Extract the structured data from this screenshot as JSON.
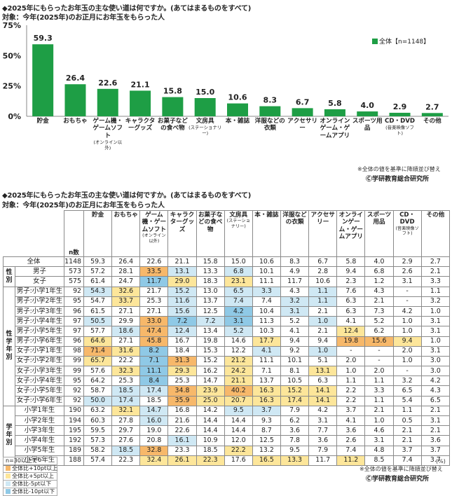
{
  "chart_data": [
    {
      "type": "bar",
      "title": "◆2025年にもらったお年玉の主な使い道は何ですか。(あてはまるものをすべて)",
      "subtitle": "対象：今年(2025年)のお正月にお年玉をもらった人",
      "categories": [
        {
          "label": "貯金",
          "sub": ""
        },
        {
          "label": "おもちゃ",
          "sub": ""
        },
        {
          "label": "ゲーム機・ゲームソフト",
          "sub": "(オンライン以外)"
        },
        {
          "label": "キャラクターグッズ",
          "sub": ""
        },
        {
          "label": "お菓子などの食べ物",
          "sub": ""
        },
        {
          "label": "文房具",
          "sub": "(ステーショナリー)"
        },
        {
          "label": "本・雑誌",
          "sub": ""
        },
        {
          "label": "洋服などの衣類",
          "sub": ""
        },
        {
          "label": "アクセサリー",
          "sub": ""
        },
        {
          "label": "オンラインゲーム・ゲームアプリ",
          "sub": ""
        },
        {
          "label": "スポーツ用品",
          "sub": ""
        },
        {
          "label": "CD・DVD",
          "sub": "(音楽映像ソフト)"
        },
        {
          "label": "その他",
          "sub": ""
        }
      ],
      "series": [
        {
          "name": "全体【n=1148】",
          "values": [
            59.3,
            26.4,
            22.6,
            21.1,
            15.8,
            15.0,
            10.6,
            8.3,
            6.7,
            5.8,
            4.0,
            2.9,
            2.7
          ]
        }
      ],
      "ylim": [
        0,
        75
      ],
      "yticks": [
        "0%",
        "25%",
        "50%",
        "75%"
      ],
      "legend_position": "top-right",
      "bar_color": "#1e9e45",
      "note": "※全体の値を基準に降順並び替え",
      "copyright": "ⒸⒸ学研教育総合研究所"
    },
    {
      "type": "table",
      "title": "◆2025年にもらったお年玉の主な使い道は何ですか。(あてはまるものをすべて)",
      "subtitle": "対象：今年(2025年)のお正月にお年玉をもらった人",
      "n_label": "n数",
      "columns": [
        {
          "label": "貯金",
          "sub": ""
        },
        {
          "label": "おもちゃ",
          "sub": ""
        },
        {
          "label": "ゲーム機・ゲームソフト",
          "sub": "(オンライン以外)"
        },
        {
          "label": "キャラクターグッズ",
          "sub": ""
        },
        {
          "label": "お菓子などの食べ物",
          "sub": ""
        },
        {
          "label": "文房具",
          "sub": "(ステーショナリー)"
        },
        {
          "label": "本・雑誌",
          "sub": ""
        },
        {
          "label": "洋服などの衣類",
          "sub": ""
        },
        {
          "label": "アクセサリー",
          "sub": ""
        },
        {
          "label": "オンラインゲーム・ゲームアプリ",
          "sub": ""
        },
        {
          "label": "スポーツ用品",
          "sub": ""
        },
        {
          "label": "CD・DVD",
          "sub": "(音楽映像ソフト)"
        },
        {
          "label": "その他",
          "sub": ""
        }
      ],
      "groups": [
        {
          "name": "",
          "rows": [
            {
              "label": "全体",
              "n": "1148",
              "values": [
                "59.3",
                "26.4",
                "22.6",
                "21.1",
                "15.8",
                "15.0",
                "10.6",
                "8.3",
                "6.7",
                "5.8",
                "4.0",
                "2.9",
                "2.7"
              ]
            }
          ]
        },
        {
          "name": "性別",
          "rows": [
            {
              "label": "男子",
              "n": "573",
              "values": [
                "57.2",
                "28.1",
                "33.5",
                "13.1",
                "13.3",
                "6.8",
                "10.1",
                "4.9",
                "2.8",
                "9.4",
                "6.8",
                "2.6",
                "2.1"
              ]
            },
            {
              "label": "女子",
              "n": "575",
              "values": [
                "61.4",
                "24.7",
                "11.7",
                "29.0",
                "18.3",
                "23.1",
                "11.1",
                "11.7",
                "10.6",
                "2.3",
                "1.2",
                "3.1",
                "3.3"
              ]
            }
          ]
        },
        {
          "name": "性学年別",
          "rows": [
            {
              "label": "男子:小学1年生",
              "n": "92",
              "values": [
                "54.3",
                "32.6",
                "21.7",
                "15.2",
                "13.0",
                "6.5",
                "3.3",
                "4.3",
                "1.1",
                "7.6",
                "4.3",
                "-",
                "1.1"
              ]
            },
            {
              "label": "男子:小学2年生",
              "n": "95",
              "values": [
                "54.7",
                "33.7",
                "25.3",
                "11.6",
                "13.7",
                "7.4",
                "7.4",
                "3.2",
                "1.1",
                "6.3",
                "2.1",
                "-",
                "3.2"
              ]
            },
            {
              "label": "男子:小学3年生",
              "n": "96",
              "values": [
                "61.5",
                "27.1",
                "27.1",
                "15.6",
                "12.5",
                "4.2",
                "10.4",
                "3.1",
                "2.1",
                "6.3",
                "7.3",
                "4.2",
                "1.0"
              ]
            },
            {
              "label": "男子:小学4年生",
              "n": "97",
              "values": [
                "50.5",
                "29.9",
                "33.0",
                "7.2",
                "7.2",
                "3.1",
                "11.3",
                "5.2",
                "1.0",
                "4.1",
                "5.2",
                "1.0",
                "3.1"
              ]
            },
            {
              "label": "男子:小学5年生",
              "n": "97",
              "values": [
                "57.7",
                "18.6",
                "47.4",
                "12.4",
                "13.4",
                "5.2",
                "10.3",
                "4.1",
                "2.1",
                "12.4",
                "6.2",
                "1.0",
                "3.1"
              ]
            },
            {
              "label": "男子:小学6年生",
              "n": "96",
              "values": [
                "64.6",
                "27.1",
                "45.8",
                "16.7",
                "19.8",
                "14.6",
                "17.7",
                "9.4",
                "9.4",
                "19.8",
                "15.6",
                "9.4",
                "1.0"
              ]
            },
            {
              "label": "女子:小学1年生",
              "n": "98",
              "values": [
                "71.4",
                "31.6",
                "8.2",
                "18.4",
                "15.3",
                "12.2",
                "4.1",
                "9.2",
                "1.0",
                "-",
                "-",
                "2.0",
                "3.1"
              ]
            },
            {
              "label": "女子:小学2年生",
              "n": "99",
              "values": [
                "65.7",
                "22.2",
                "7.1",
                "31.3",
                "15.2",
                "21.2",
                "11.1",
                "10.1",
                "5.1",
                "2.0",
                "-",
                "1.0",
                "3.0"
              ]
            },
            {
              "label": "女子:小学3年生",
              "n": "99",
              "values": [
                "57.6",
                "32.3",
                "11.1",
                "29.3",
                "16.2",
                "24.2",
                "7.1",
                "8.1",
                "13.1",
                "1.0",
                "2.0",
                "-",
                "3.0"
              ]
            },
            {
              "label": "女子:小学4年生",
              "n": "95",
              "values": [
                "64.2",
                "25.3",
                "8.4",
                "25.3",
                "14.7",
                "21.1",
                "13.7",
                "10.5",
                "6.3",
                "1.1",
                "1.1",
                "3.2",
                "4.2"
              ]
            },
            {
              "label": "女子:小学5年生",
              "n": "92",
              "values": [
                "58.7",
                "18.5",
                "17.4",
                "34.8",
                "23.9",
                "40.2",
                "16.3",
                "15.2",
                "14.1",
                "2.2",
                "3.3",
                "6.5",
                "4.3"
              ]
            },
            {
              "label": "女子:小学6年生",
              "n": "92",
              "values": [
                "50.0",
                "17.4",
                "18.5",
                "35.9",
                "25.0",
                "20.7",
                "16.3",
                "17.4",
                "14.1",
                "2.2",
                "1.1",
                "5.4",
                "6.5"
              ]
            }
          ]
        },
        {
          "name": "学年別",
          "rows": [
            {
              "label": "小学1年生",
              "n": "190",
              "values": [
                "63.2",
                "32.1",
                "14.7",
                "16.8",
                "14.2",
                "9.5",
                "3.7",
                "7.9",
                "4.2",
                "3.7",
                "2.1",
                "1.1",
                "2.1"
              ]
            },
            {
              "label": "小学2年生",
              "n": "194",
              "values": [
                "60.3",
                "27.8",
                "16.0",
                "21.6",
                "14.4",
                "14.4",
                "9.3",
                "6.2",
                "3.1",
                "4.1",
                "1.0",
                "0.5",
                "3.1"
              ]
            },
            {
              "label": "小学3年生",
              "n": "195",
              "values": [
                "59.5",
                "29.7",
                "19.0",
                "22.6",
                "14.4",
                "14.4",
                "8.7",
                "3.6",
                "7.7",
                "3.6",
                "4.6",
                "2.1",
                "2.1"
              ]
            },
            {
              "label": "小学4年生",
              "n": "192",
              "values": [
                "57.3",
                "27.6",
                "20.8",
                "16.1",
                "10.9",
                "12.0",
                "12.5",
                "7.8",
                "3.6",
                "2.6",
                "3.1",
                "2.1",
                "3.6"
              ]
            },
            {
              "label": "小学5年生",
              "n": "189",
              "values": [
                "58.2",
                "18.5",
                "32.8",
                "23.3",
                "18.5",
                "22.2",
                "13.2",
                "9.5",
                "7.9",
                "7.4",
                "4.8",
                "3.7",
                "3.7"
              ]
            },
            {
              "label": "小学6年生",
              "n": "188",
              "values": [
                "57.4",
                "22.3",
                "32.4",
                "26.1",
                "22.3",
                "17.6",
                "16.5",
                "13.3",
                "11.7",
                "11.2",
                "8.5",
                "7.4",
                "3.7"
              ]
            }
          ]
        }
      ],
      "legend": [
        {
          "label": "n=30以上で",
          "color": ""
        },
        {
          "label": "全体比+10pt以上",
          "color": "#f7b86a"
        },
        {
          "label": "全体比+5pt以上",
          "color": "#fde69a"
        },
        {
          "label": "全体比-5pt以下",
          "color": "#cfe8f4"
        },
        {
          "label": "全体比-10pt以下",
          "color": "#8fc9e6"
        }
      ],
      "unit": "(%)",
      "note": "※全体の値を基準に降順並び替え",
      "copyright": "Ⓒ学研教育総合研究所"
    }
  ]
}
